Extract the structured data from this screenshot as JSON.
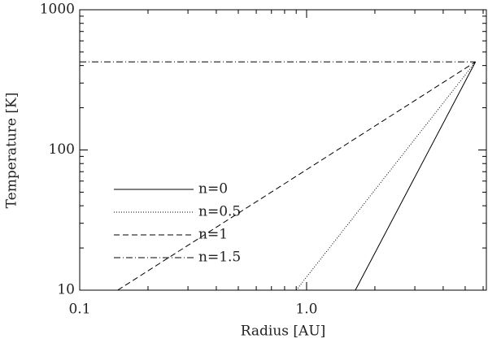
{
  "chart_data": {
    "type": "line",
    "xlabel": "Radius [AU]",
    "ylabel": "Temperature [K]",
    "xscale": "log",
    "yscale": "log",
    "xlim": [
      0.1,
      6.2
    ],
    "ylim": [
      10,
      1000
    ],
    "xticks": [
      0.1,
      {
        "value": 1,
        "label": "1.0"
      }
    ],
    "yticks": [
      10,
      100,
      1000
    ],
    "x_minor_ticks": [
      0.2,
      0.3,
      0.4,
      0.5,
      0.6,
      0.7,
      0.8,
      0.9,
      2,
      3,
      4,
      5,
      6
    ],
    "y_minor_ticks": [
      20,
      30,
      40,
      50,
      60,
      70,
      80,
      90,
      200,
      300,
      400,
      500,
      600,
      700,
      800,
      900
    ],
    "legend": "lower-left",
    "series": [
      {
        "name": "n=0",
        "color": "#000000",
        "dash": "solid",
        "x": [
          1.64,
          5.55
        ],
        "values": [
          10,
          425
        ]
      },
      {
        "name": "n=0.5",
        "color": "#000000",
        "dash": "dotted",
        "x": [
          0.9,
          5.55
        ],
        "values": [
          10,
          425
        ]
      },
      {
        "name": "n=1",
        "color": "#000000",
        "dash": "dashed",
        "x": [
          0.147,
          5.55
        ],
        "values": [
          10,
          425
        ]
      },
      {
        "name": "n=1.5",
        "color": "#000000",
        "dash": "dashdot",
        "x": [
          0.1,
          5.55
        ],
        "values": [
          425,
          425
        ]
      }
    ]
  }
}
